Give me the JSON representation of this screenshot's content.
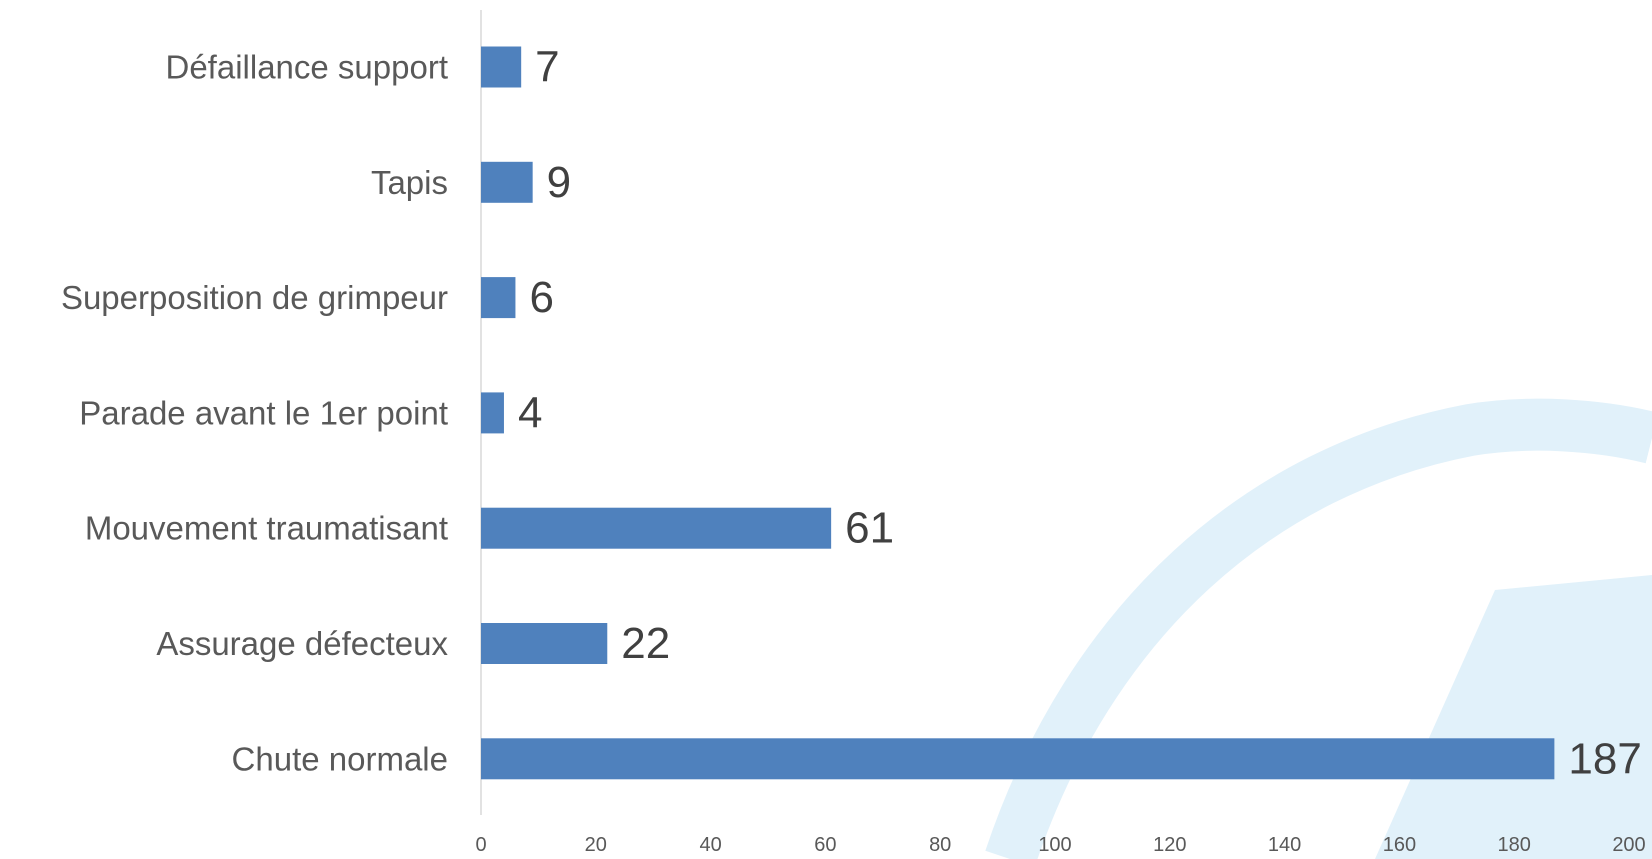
{
  "colors": {
    "bar": "#4f81bd",
    "axis_line": "#d9d9d9",
    "background_shape": "#e1f1fa"
  },
  "chart_data": {
    "type": "bar",
    "orientation": "horizontal",
    "title": "",
    "xlabel": "",
    "ylabel": "",
    "categories": [
      "Défaillance support",
      "Tapis",
      "Superposition de grimpeur",
      "Parade avant le 1er point",
      "Mouvement traumatisant",
      "Assurage défecteux",
      "Chute normale"
    ],
    "values": [
      7,
      9,
      6,
      4,
      61,
      22,
      187
    ],
    "xlim": [
      0,
      200
    ],
    "xticks": [
      0,
      20,
      40,
      60,
      80,
      100,
      120,
      140,
      160,
      180,
      200
    ],
    "xtick_labels": [
      "0",
      "20",
      "40",
      "60",
      "80",
      "100",
      "120",
      "140",
      "160",
      "180",
      "200"
    ],
    "data_labels": [
      "7",
      "9",
      "6",
      "4",
      "61",
      "22",
      "187"
    ],
    "grid": false,
    "legend": "none"
  }
}
